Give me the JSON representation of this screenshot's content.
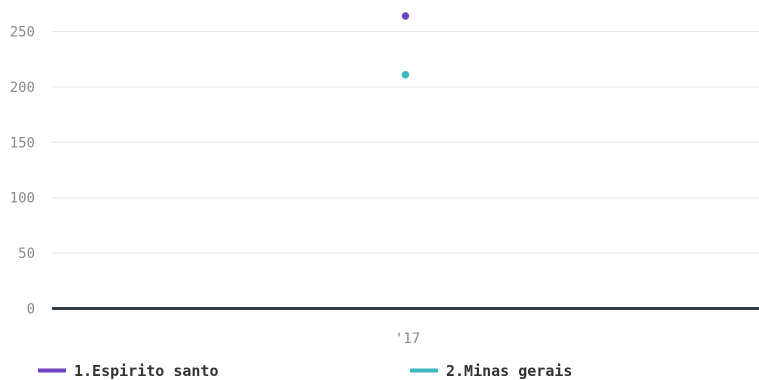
{
  "chart_data": {
    "type": "scatter",
    "categories": [
      "'17"
    ],
    "ylim": [
      0,
      275
    ],
    "yticks": [
      0,
      50,
      100,
      150,
      200,
      250
    ],
    "ytick_labels": [
      "0",
      "50",
      "100",
      "150",
      "200",
      "250"
    ],
    "grid": true,
    "legend_placement": "bottom",
    "series": [
      {
        "name": "1.Espirito santo",
        "color": "#6f42c1",
        "values": [
          264
        ]
      },
      {
        "name": "2.Minas gerais",
        "color": "#3fb8bd",
        "values": [
          211
        ]
      }
    ]
  }
}
